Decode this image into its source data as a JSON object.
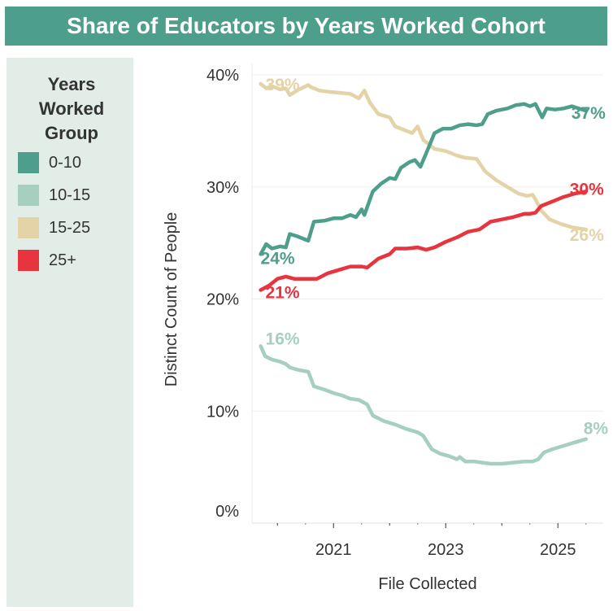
{
  "title": "Share of Educators by Years Worked Cohort",
  "legend": {
    "title_lines": [
      "Years",
      "Worked",
      "Group"
    ],
    "items": [
      {
        "label": "0-10",
        "color": "#4e9e8c"
      },
      {
        "label": "10-15",
        "color": "#a6cfc0"
      },
      {
        "label": "15-25",
        "color": "#e3d3a6"
      },
      {
        "label": "25+",
        "color": "#e8343e"
      }
    ]
  },
  "chart_data": {
    "type": "line",
    "title": "Share of Educators by Years Worked Cohort",
    "xlabel": "File Collected",
    "ylabel": "Distinct Count of People",
    "xlim": [
      2019.65,
      2025.6
    ],
    "ylim": [
      0,
      40
    ],
    "x_ticks": [
      2021,
      2023,
      2025
    ],
    "y_ticks": [
      0,
      10,
      20,
      30,
      40
    ],
    "grid": "horizontal",
    "legend_position": "left",
    "series": [
      {
        "name": "0-10",
        "color": "#4e9e8c",
        "start_label": "24%",
        "end_label": "37%",
        "points": [
          [
            2019.7,
            24.0
          ],
          [
            2019.8,
            24.9
          ],
          [
            2019.9,
            24.5
          ],
          [
            2020.05,
            24.7
          ],
          [
            2020.15,
            24.6
          ],
          [
            2020.22,
            25.8
          ],
          [
            2020.35,
            25.6
          ],
          [
            2020.55,
            25.2
          ],
          [
            2020.65,
            26.9
          ],
          [
            2020.85,
            27.0
          ],
          [
            2021.0,
            27.2
          ],
          [
            2021.15,
            27.2
          ],
          [
            2021.3,
            27.5
          ],
          [
            2021.4,
            27.3
          ],
          [
            2021.5,
            28.0
          ],
          [
            2021.55,
            27.5
          ],
          [
            2021.7,
            29.6
          ],
          [
            2021.85,
            30.3
          ],
          [
            2022.0,
            30.8
          ],
          [
            2022.1,
            30.7
          ],
          [
            2022.2,
            31.7
          ],
          [
            2022.35,
            32.2
          ],
          [
            2022.45,
            32.4
          ],
          [
            2022.55,
            31.8
          ],
          [
            2022.7,
            33.6
          ],
          [
            2022.8,
            34.8
          ],
          [
            2022.95,
            35.2
          ],
          [
            2023.1,
            35.2
          ],
          [
            2023.25,
            35.5
          ],
          [
            2023.4,
            35.6
          ],
          [
            2023.55,
            35.5
          ],
          [
            2023.65,
            35.6
          ],
          [
            2023.75,
            36.5
          ],
          [
            2023.9,
            36.8
          ],
          [
            2024.1,
            37.0
          ],
          [
            2024.25,
            37.3
          ],
          [
            2024.4,
            37.4
          ],
          [
            2024.5,
            37.2
          ],
          [
            2024.6,
            37.4
          ],
          [
            2024.72,
            36.2
          ],
          [
            2024.8,
            37.0
          ],
          [
            2024.95,
            36.9
          ],
          [
            2025.1,
            37.0
          ],
          [
            2025.25,
            37.2
          ],
          [
            2025.5,
            36.8
          ]
        ]
      },
      {
        "name": "10-15",
        "color": "#a6cfc0",
        "start_label": "16%",
        "end_label": "8%",
        "points": [
          [
            2019.7,
            15.8
          ],
          [
            2019.78,
            14.9
          ],
          [
            2019.9,
            14.6
          ],
          [
            2020.05,
            14.4
          ],
          [
            2020.15,
            14.2
          ],
          [
            2020.22,
            13.9
          ],
          [
            2020.35,
            13.7
          ],
          [
            2020.55,
            13.5
          ],
          [
            2020.65,
            12.2
          ],
          [
            2020.85,
            11.9
          ],
          [
            2021.0,
            11.6
          ],
          [
            2021.15,
            11.4
          ],
          [
            2021.3,
            11.1
          ],
          [
            2021.45,
            11.0
          ],
          [
            2021.6,
            10.6
          ],
          [
            2021.7,
            9.6
          ],
          [
            2021.9,
            9.1
          ],
          [
            2022.1,
            8.8
          ],
          [
            2022.3,
            8.4
          ],
          [
            2022.5,
            8.1
          ],
          [
            2022.6,
            7.8
          ],
          [
            2022.75,
            6.6
          ],
          [
            2022.9,
            6.2
          ],
          [
            2023.05,
            6.0
          ],
          [
            2023.2,
            5.7
          ],
          [
            2023.25,
            5.9
          ],
          [
            2023.35,
            5.5
          ],
          [
            2023.5,
            5.5
          ],
          [
            2023.65,
            5.4
          ],
          [
            2023.8,
            5.3
          ],
          [
            2024.0,
            5.3
          ],
          [
            2024.2,
            5.4
          ],
          [
            2024.4,
            5.5
          ],
          [
            2024.55,
            5.5
          ],
          [
            2024.65,
            5.7
          ],
          [
            2024.75,
            6.3
          ],
          [
            2024.9,
            6.6
          ],
          [
            2025.1,
            6.9
          ],
          [
            2025.3,
            7.2
          ],
          [
            2025.5,
            7.5
          ]
        ]
      },
      {
        "name": "15-25",
        "color": "#e3d3a6",
        "start_label": "39%",
        "end_label": "26%",
        "points": [
          [
            2019.7,
            39.2
          ],
          [
            2019.8,
            38.8
          ],
          [
            2019.9,
            39.0
          ],
          [
            2020.05,
            38.7
          ],
          [
            2020.15,
            38.8
          ],
          [
            2020.22,
            38.2
          ],
          [
            2020.35,
            38.6
          ],
          [
            2020.55,
            39.1
          ],
          [
            2020.6,
            38.9
          ],
          [
            2020.75,
            38.6
          ],
          [
            2020.9,
            38.5
          ],
          [
            2021.1,
            38.4
          ],
          [
            2021.3,
            38.3
          ],
          [
            2021.45,
            37.9
          ],
          [
            2021.55,
            38.6
          ],
          [
            2021.65,
            37.5
          ],
          [
            2021.8,
            36.5
          ],
          [
            2022.0,
            36.2
          ],
          [
            2022.1,
            35.4
          ],
          [
            2022.25,
            35.1
          ],
          [
            2022.4,
            34.8
          ],
          [
            2022.5,
            35.4
          ],
          [
            2022.6,
            34.2
          ],
          [
            2022.8,
            33.4
          ],
          [
            2023.0,
            33.2
          ],
          [
            2023.2,
            32.8
          ],
          [
            2023.35,
            32.6
          ],
          [
            2023.55,
            32.5
          ],
          [
            2023.7,
            31.4
          ],
          [
            2023.9,
            30.6
          ],
          [
            2024.1,
            30.0
          ],
          [
            2024.3,
            29.4
          ],
          [
            2024.45,
            29.2
          ],
          [
            2024.55,
            29.3
          ],
          [
            2024.6,
            28.9
          ],
          [
            2024.7,
            27.9
          ],
          [
            2024.85,
            27.1
          ],
          [
            2025.05,
            26.7
          ],
          [
            2025.25,
            26.4
          ],
          [
            2025.5,
            26.2
          ]
        ]
      },
      {
        "name": "25+",
        "color": "#e8343e",
        "start_label": "21%",
        "end_label": "30%",
        "points": [
          [
            2019.7,
            20.8
          ],
          [
            2019.85,
            21.2
          ],
          [
            2020.0,
            21.8
          ],
          [
            2020.15,
            22.0
          ],
          [
            2020.3,
            21.8
          ],
          [
            2020.5,
            21.8
          ],
          [
            2020.7,
            21.8
          ],
          [
            2020.9,
            22.3
          ],
          [
            2021.1,
            22.6
          ],
          [
            2021.3,
            22.9
          ],
          [
            2021.5,
            22.9
          ],
          [
            2021.6,
            22.8
          ],
          [
            2021.8,
            23.6
          ],
          [
            2022.0,
            24.0
          ],
          [
            2022.1,
            24.5
          ],
          [
            2022.3,
            24.5
          ],
          [
            2022.5,
            24.6
          ],
          [
            2022.65,
            24.4
          ],
          [
            2022.8,
            24.6
          ],
          [
            2023.0,
            25.1
          ],
          [
            2023.2,
            25.5
          ],
          [
            2023.4,
            26.0
          ],
          [
            2023.6,
            26.2
          ],
          [
            2023.8,
            26.9
          ],
          [
            2024.0,
            27.1
          ],
          [
            2024.2,
            27.3
          ],
          [
            2024.4,
            27.6
          ],
          [
            2024.5,
            27.6
          ],
          [
            2024.6,
            27.7
          ],
          [
            2024.7,
            28.3
          ],
          [
            2024.9,
            28.7
          ],
          [
            2025.1,
            29.1
          ],
          [
            2025.3,
            29.4
          ],
          [
            2025.5,
            29.6
          ]
        ]
      }
    ]
  }
}
